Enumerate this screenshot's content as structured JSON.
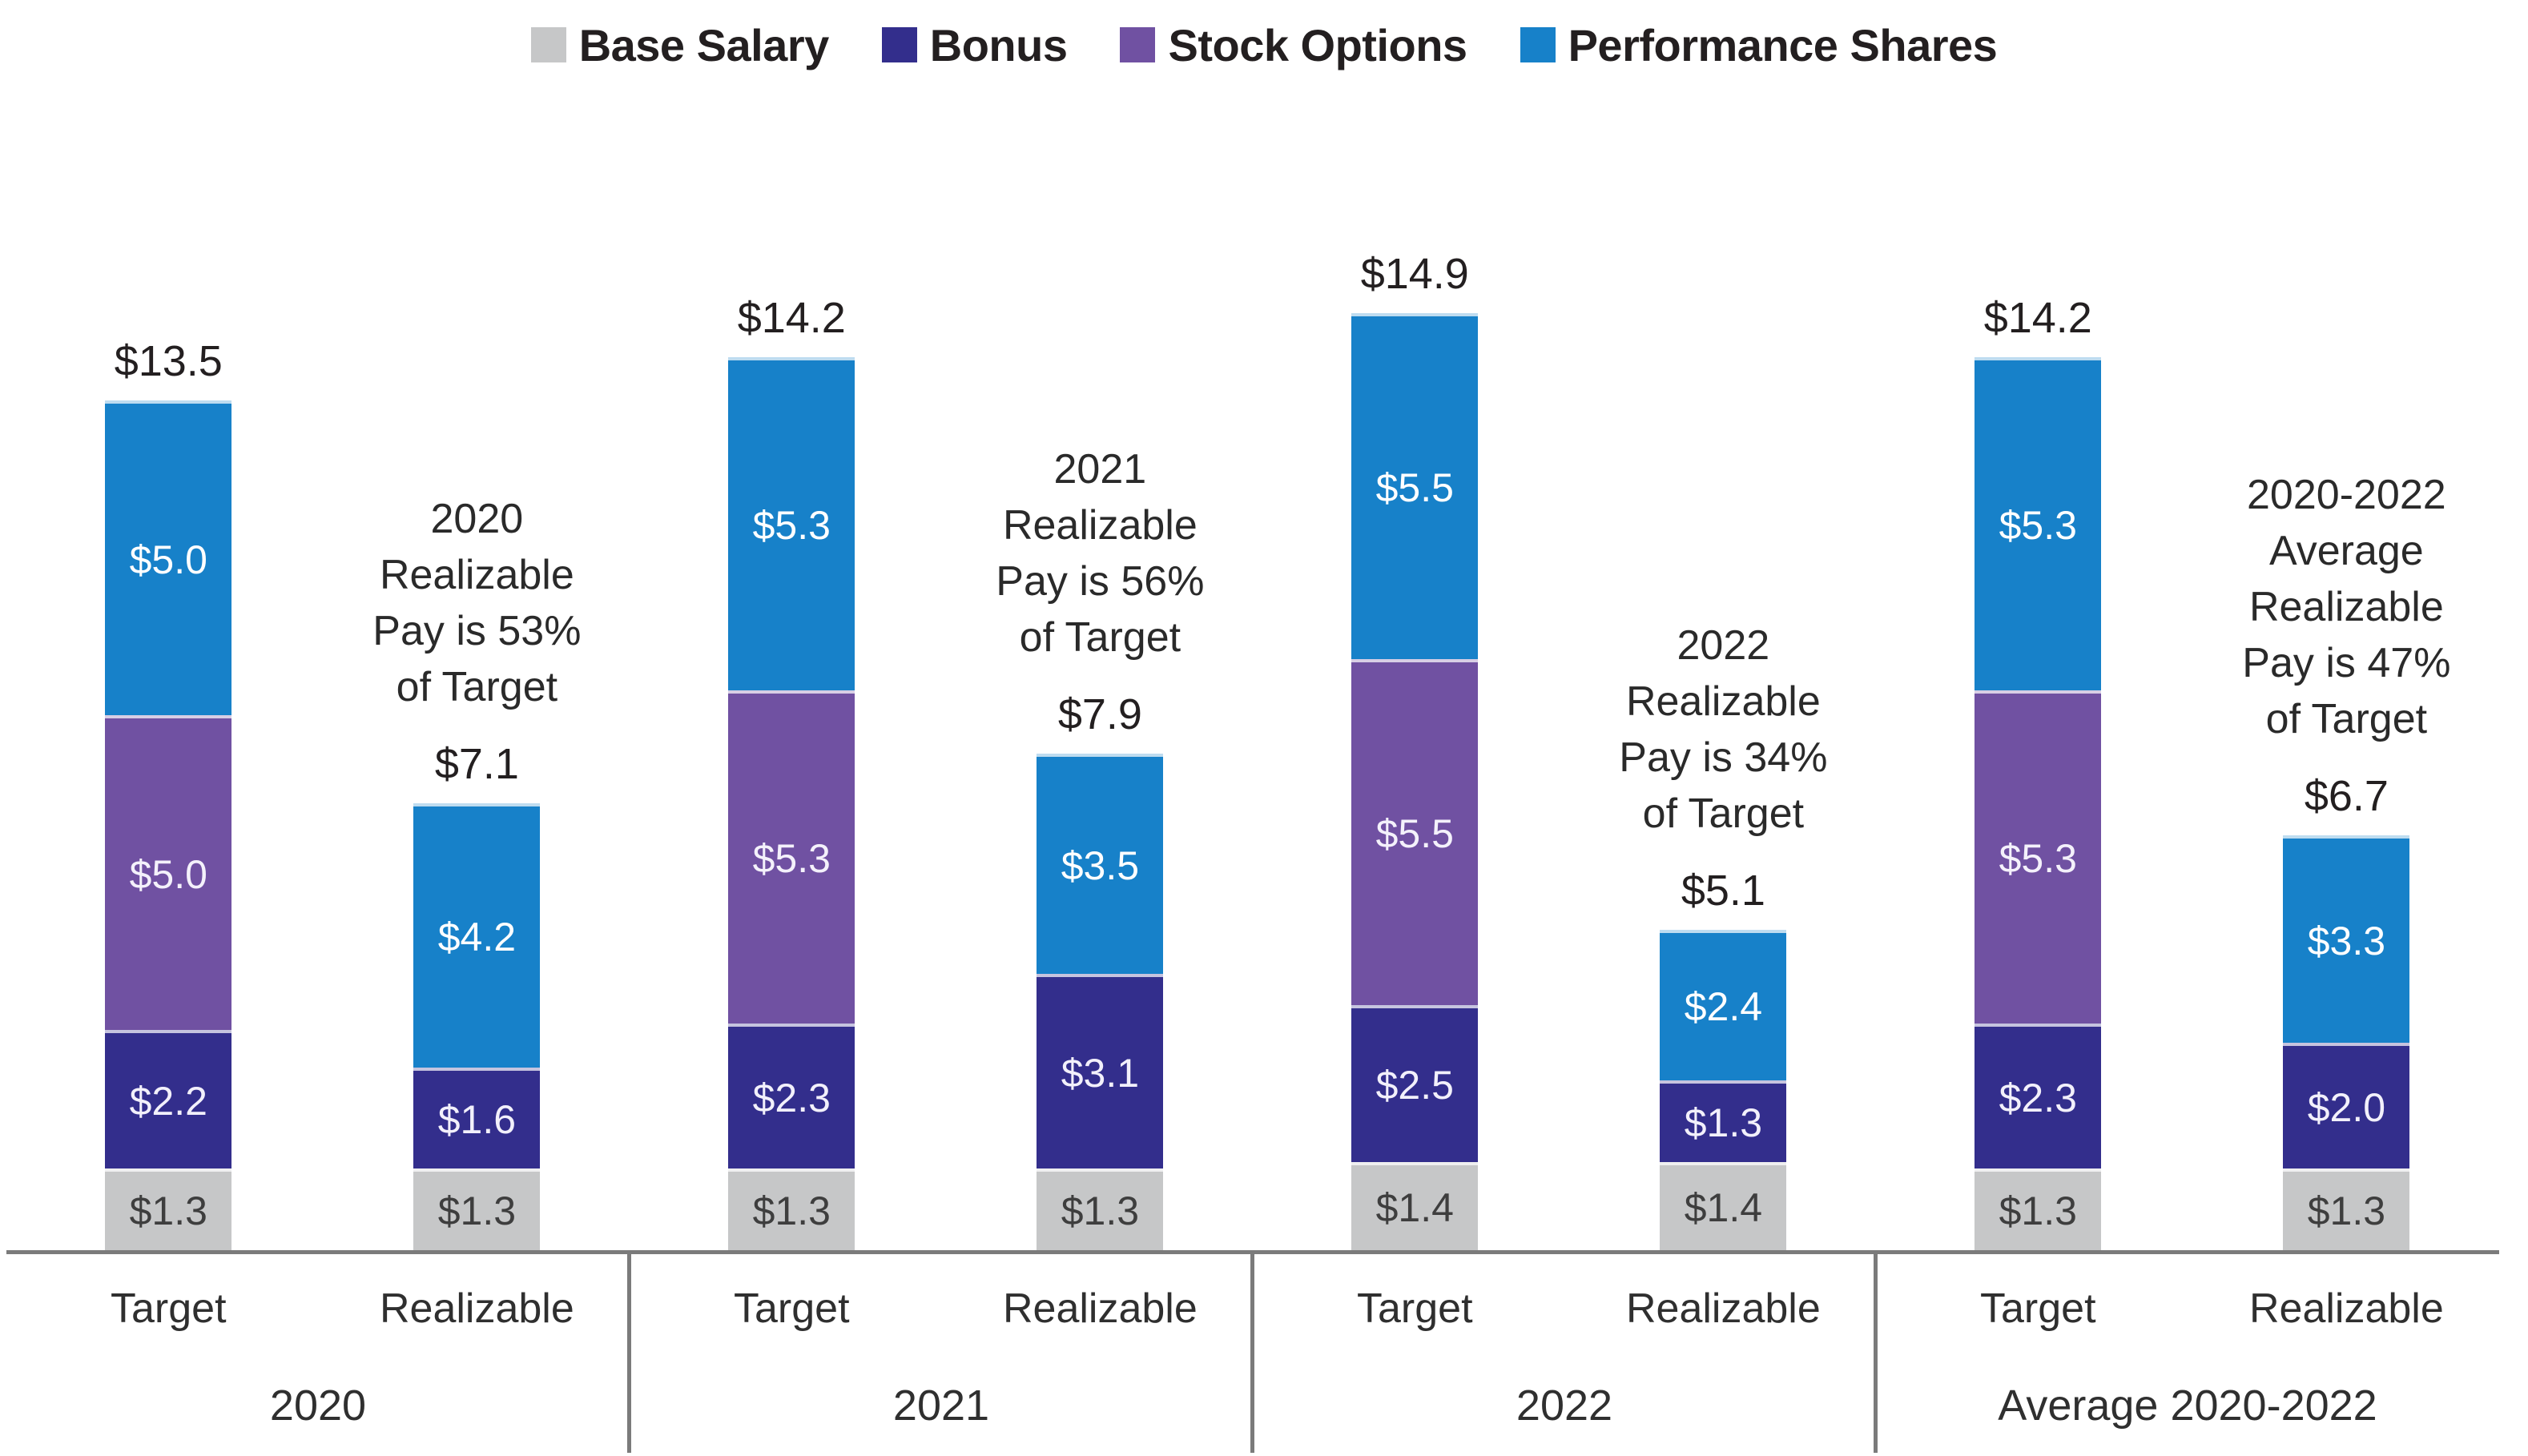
{
  "legend": {
    "items": [
      {
        "label": "Base Salary",
        "color": "#c6c7c8"
      },
      {
        "label": "Bonus",
        "color": "#332e8c"
      },
      {
        "label": "Stock Options",
        "color": "#7051a2"
      },
      {
        "label": "Performance Shares",
        "color": "#1781c9"
      }
    ]
  },
  "chart_data": {
    "type": "bar",
    "stacked": true,
    "title": "",
    "legend_position": "top",
    "grid": false,
    "series": [
      {
        "name": "Base Salary",
        "color": "#c6c7c8",
        "label_color": "#3e3e3e"
      },
      {
        "name": "Bonus",
        "color": "#332e8c",
        "label_color": "#f2f0fb"
      },
      {
        "name": "Stock Options",
        "color": "#7051a2",
        "label_color": "#f4f1fb"
      },
      {
        "name": "Performance Shares",
        "color": "#1781c9",
        "label_color": "#ffffff"
      }
    ],
    "axis_color": "#7b7b7b",
    "groups": [
      {
        "label": "2020",
        "bars": [
          {
            "label": "Target",
            "total_label": "$13.5",
            "total_value": 13.5,
            "segments": [
              {
                "series": "Base Salary",
                "value": 1.3,
                "label": "$1.3"
              },
              {
                "series": "Bonus",
                "value": 2.2,
                "label": "$2.2"
              },
              {
                "series": "Stock Options",
                "value": 5.0,
                "label": "$5.0"
              },
              {
                "series": "Performance Shares",
                "value": 5.0,
                "label": "$5.0"
              }
            ]
          },
          {
            "label": "Realizable",
            "total_label": "$7.1",
            "total_value": 7.1,
            "annotation": "2020\nRealizable\nPay is 53%\nof Target",
            "segments": [
              {
                "series": "Base Salary",
                "value": 1.3,
                "label": "$1.3"
              },
              {
                "series": "Bonus",
                "value": 1.6,
                "label": "$1.6"
              },
              {
                "series": "Performance Shares",
                "value": 4.2,
                "label": "$4.2"
              }
            ]
          }
        ]
      },
      {
        "label": "2021",
        "bars": [
          {
            "label": "Target",
            "total_label": "$14.2",
            "total_value": 14.2,
            "segments": [
              {
                "series": "Base Salary",
                "value": 1.3,
                "label": "$1.3"
              },
              {
                "series": "Bonus",
                "value": 2.3,
                "label": "$2.3"
              },
              {
                "series": "Stock Options",
                "value": 5.3,
                "label": "$5.3"
              },
              {
                "series": "Performance Shares",
                "value": 5.3,
                "label": "$5.3"
              }
            ]
          },
          {
            "label": "Realizable",
            "total_label": "$7.9",
            "total_value": 7.9,
            "annotation": "2021\nRealizable\nPay is 56%\nof Target",
            "segments": [
              {
                "series": "Base Salary",
                "value": 1.3,
                "label": "$1.3"
              },
              {
                "series": "Bonus",
                "value": 3.1,
                "label": "$3.1"
              },
              {
                "series": "Performance Shares",
                "value": 3.5,
                "label": "$3.5"
              }
            ]
          }
        ]
      },
      {
        "label": "2022",
        "bars": [
          {
            "label": "Target",
            "total_label": "$14.9",
            "total_value": 14.9,
            "segments": [
              {
                "series": "Base Salary",
                "value": 1.4,
                "label": "$1.4"
              },
              {
                "series": "Bonus",
                "value": 2.5,
                "label": "$2.5"
              },
              {
                "series": "Stock Options",
                "value": 5.5,
                "label": "$5.5"
              },
              {
                "series": "Performance Shares",
                "value": 5.5,
                "label": "$5.5"
              }
            ]
          },
          {
            "label": "Realizable",
            "total_label": "$5.1",
            "total_value": 5.1,
            "annotation": "2022\nRealizable\nPay is 34%\nof Target",
            "segments": [
              {
                "series": "Base Salary",
                "value": 1.4,
                "label": "$1.4"
              },
              {
                "series": "Bonus",
                "value": 1.3,
                "label": "$1.3"
              },
              {
                "series": "Performance Shares",
                "value": 2.4,
                "label": "$2.4"
              }
            ]
          }
        ]
      },
      {
        "label": "Average 2020-2022",
        "bars": [
          {
            "label": "Target",
            "total_label": "$14.2",
            "total_value": 14.2,
            "segments": [
              {
                "series": "Base Salary",
                "value": 1.3,
                "label": "$1.3"
              },
              {
                "series": "Bonus",
                "value": 2.3,
                "label": "$2.3"
              },
              {
                "series": "Stock Options",
                "value": 5.3,
                "label": "$5.3"
              },
              {
                "series": "Performance Shares",
                "value": 5.3,
                "label": "$5.3"
              }
            ]
          },
          {
            "label": "Realizable",
            "total_label": "$6.7",
            "total_value": 6.7,
            "annotation": "2020-2022\nAverage\nRealizable\nPay is 47%\nof Target",
            "segments": [
              {
                "series": "Base Salary",
                "value": 1.3,
                "label": "$1.3"
              },
              {
                "series": "Bonus",
                "value": 2.0,
                "label": "$2.0"
              },
              {
                "series": "Performance Shares",
                "value": 3.3,
                "label": "$3.3"
              }
            ]
          }
        ]
      }
    ]
  }
}
